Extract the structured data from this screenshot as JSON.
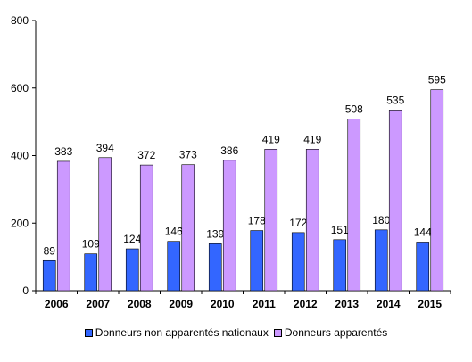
{
  "chart_data": {
    "type": "bar",
    "categories": [
      "2006",
      "2007",
      "2008",
      "2009",
      "2010",
      "2011",
      "2012",
      "2013",
      "2014",
      "2015"
    ],
    "series": [
      {
        "name": "Donneurs non apparentés nationaux",
        "color": "#3366ff",
        "values": [
          89,
          109,
          124,
          146,
          139,
          178,
          172,
          151,
          180,
          144
        ]
      },
      {
        "name": "Donneurs apparentés",
        "color": "#cc99ff",
        "values": [
          383,
          394,
          372,
          373,
          386,
          419,
          419,
          508,
          535,
          595
        ]
      }
    ],
    "ylim": [
      0,
      800
    ],
    "yticks": [
      "0",
      "200",
      "400",
      "600",
      "800"
    ],
    "grid": false,
    "legend": "bottom",
    "title": "",
    "xlabel": "",
    "ylabel": ""
  }
}
